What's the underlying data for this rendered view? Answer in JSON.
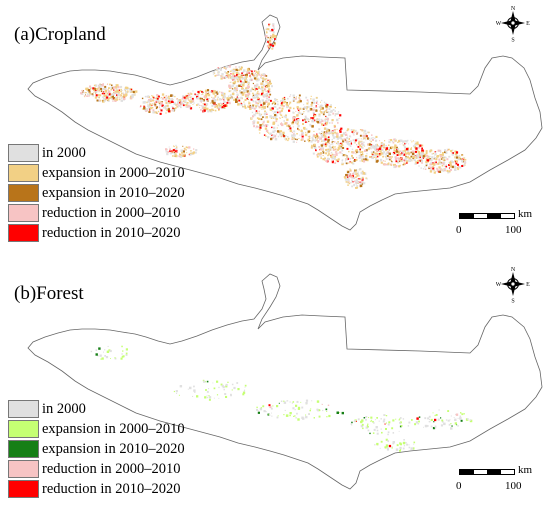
{
  "panels": [
    {
      "title": "(a)Cropland",
      "legend": [
        {
          "label": "in 2000",
          "color": "#e0e0e0"
        },
        {
          "label": "expansion in 2000–2010",
          "color": "#f2d085"
        },
        {
          "label": "expansion in 2010–2020",
          "color": "#b8741a"
        },
        {
          "label": "reduction in 2000–2010",
          "color": "#f7c4c4"
        },
        {
          "label": "reduction in 2010–2020",
          "color": "#ff0000"
        }
      ]
    },
    {
      "title": "(b)Forest",
      "legend": [
        {
          "label": "in 2000",
          "color": "#e0e0e0"
        },
        {
          "label": "expansion in 2000–2010",
          "color": "#c5ff73"
        },
        {
          "label": "expansion in 2010–2020",
          "color": "#167f16"
        },
        {
          "label": "reduction in 2000–2010",
          "color": "#f7c4c4"
        },
        {
          "label": "reduction in 2010–2020",
          "color": "#ff0000"
        }
      ]
    }
  ],
  "north_arrow": {
    "n": "N",
    "s": "S",
    "e": "E",
    "w": "W"
  },
  "scale": {
    "unit": "km",
    "start": "0",
    "end": "100"
  }
}
